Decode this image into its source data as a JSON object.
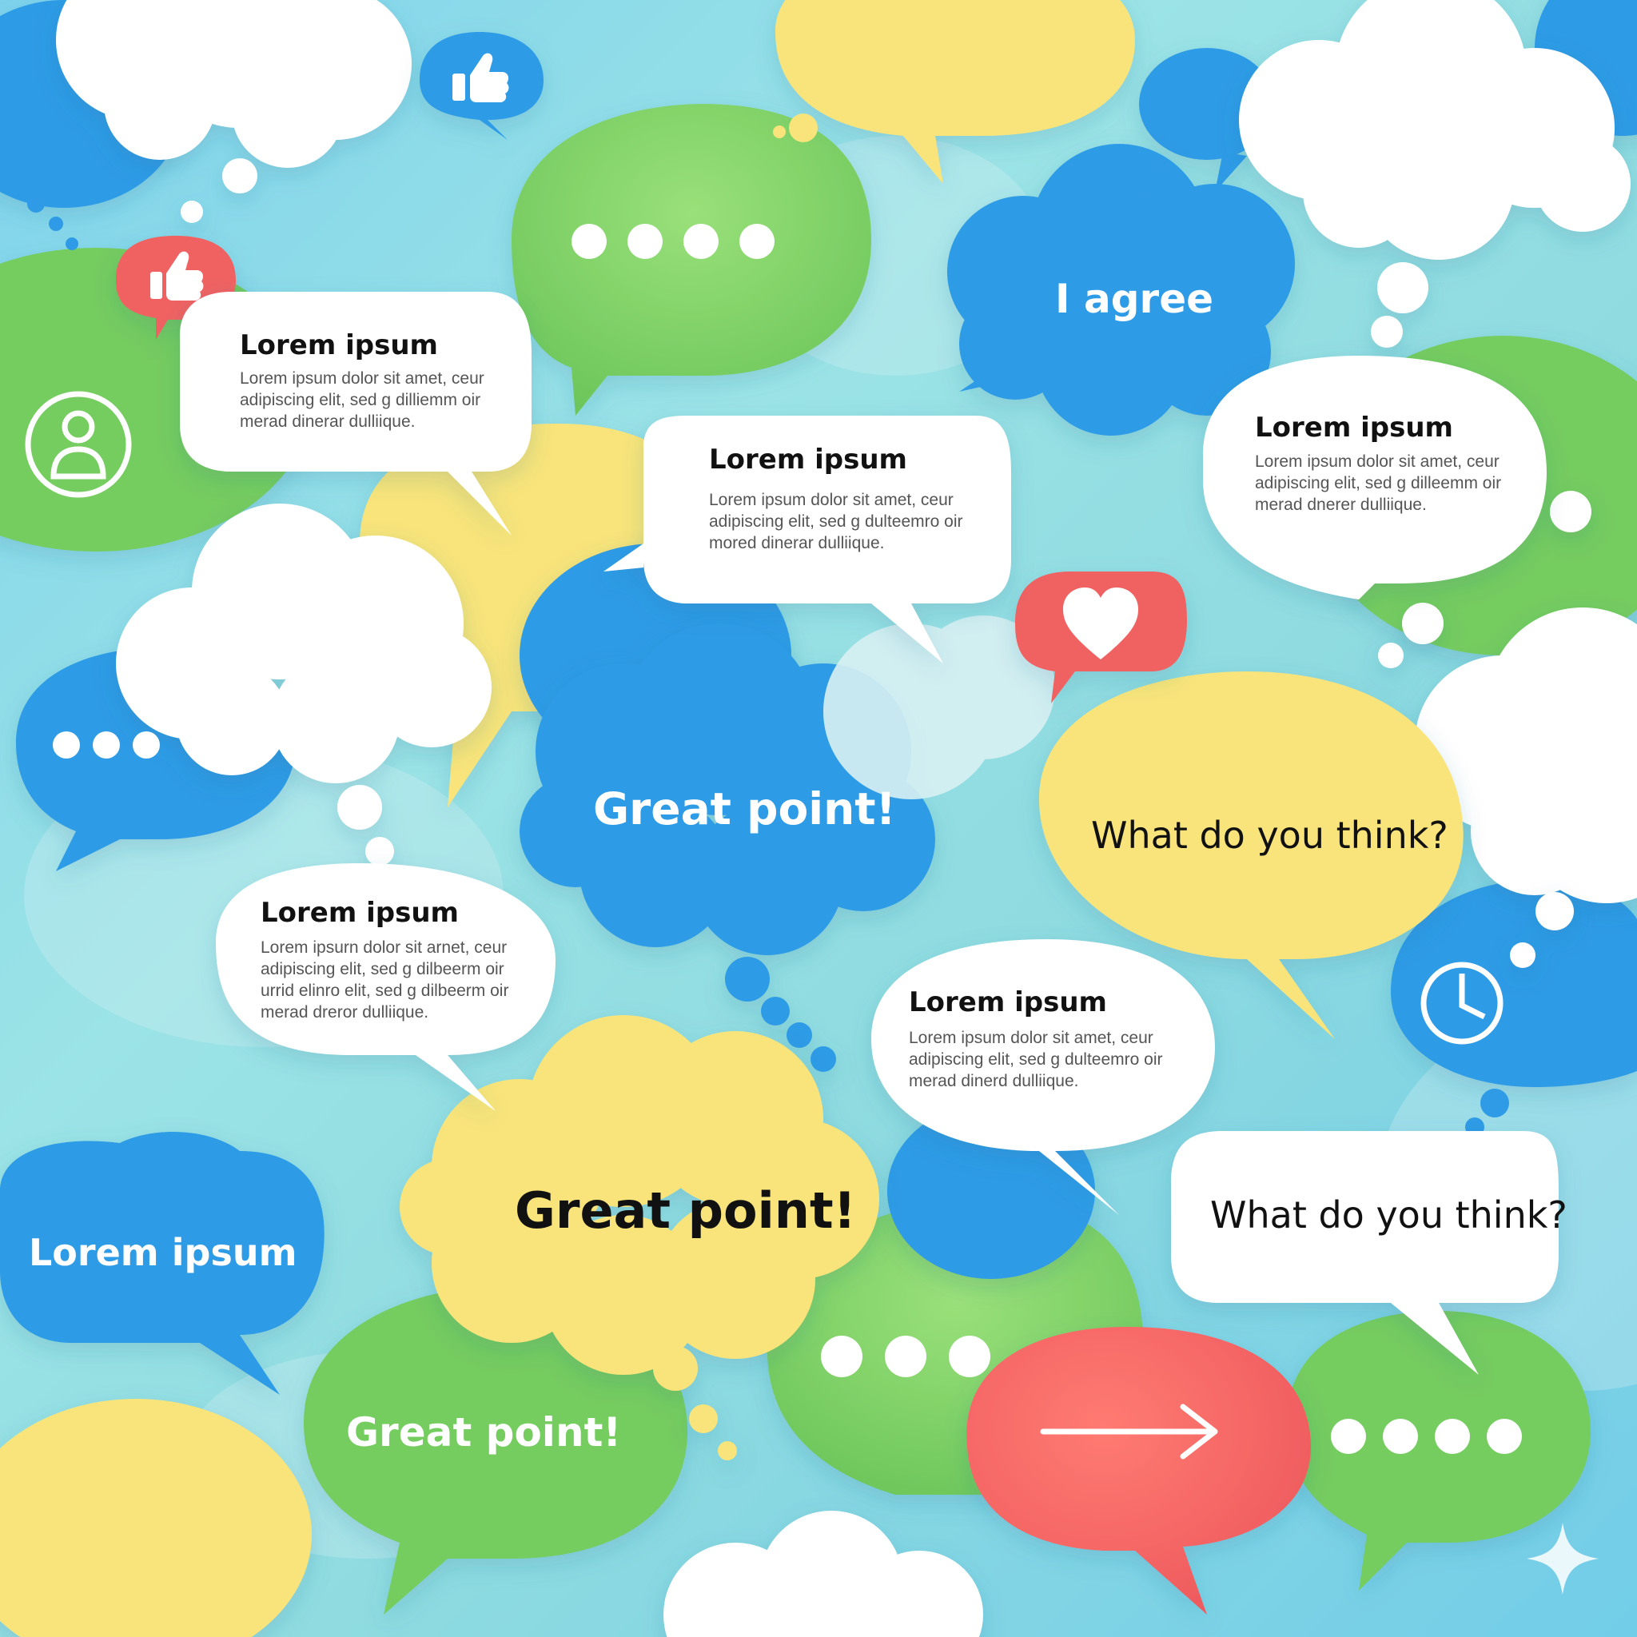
{
  "colors": {
    "background": "#8fdbe0",
    "blue": "#2f9be6",
    "green": "#74cc5f",
    "yellow": "#f8e47a",
    "white": "#ffffff",
    "red": "#f06262",
    "text_dark": "#111111",
    "text_body": "#555555"
  },
  "cards": [
    {
      "title": "Lorem ipsum",
      "body": "Lorem ipsum dolor sit amet, ceur adipiscing elit, sed g dilliemm oir merad dinerar dulliique."
    },
    {
      "title": "Lorem ipsum",
      "body": "Lorem ipsum dolor sit amet, ceur adipiscing elit, sed g dulteemro oir mored dinerar dulliique."
    },
    {
      "title": "Lorem ipsum",
      "body": "Lorem ipsum dolor sit amet, ceur adipiscing elit, sed g dilleemm oir merad dnerer dulliique."
    },
    {
      "title": "Lorem ipsum",
      "body": "Lorem ipsurn dolor sit arnet, ceur adipiscing elit, sed g dilbeerm oir urrid elinro elit, sed g dilbeerm oir merad dreror dulliique."
    },
    {
      "title": "Lorem ipsum",
      "body": "Lorem ipsum dolor sit amet, ceur adipiscing elit, sed g dulteemro oir merad dinerd dulliique."
    }
  ],
  "bubbles": {
    "i_agree": "I agree",
    "great_point_blue": "Great point!",
    "what_think_yellow": "What do you think?",
    "lorem_blue": "Lorem ipsum",
    "great_point_yellow": "Great point!",
    "what_think_white": "What do you think?",
    "great_point_green": "Great point!"
  },
  "icons": [
    "thumbs-up-icon",
    "thumbs-up-icon",
    "heart-icon",
    "user-icon",
    "clock-icon",
    "arrow-right-icon",
    "typing-dots-icon",
    "sparkle-icon"
  ]
}
